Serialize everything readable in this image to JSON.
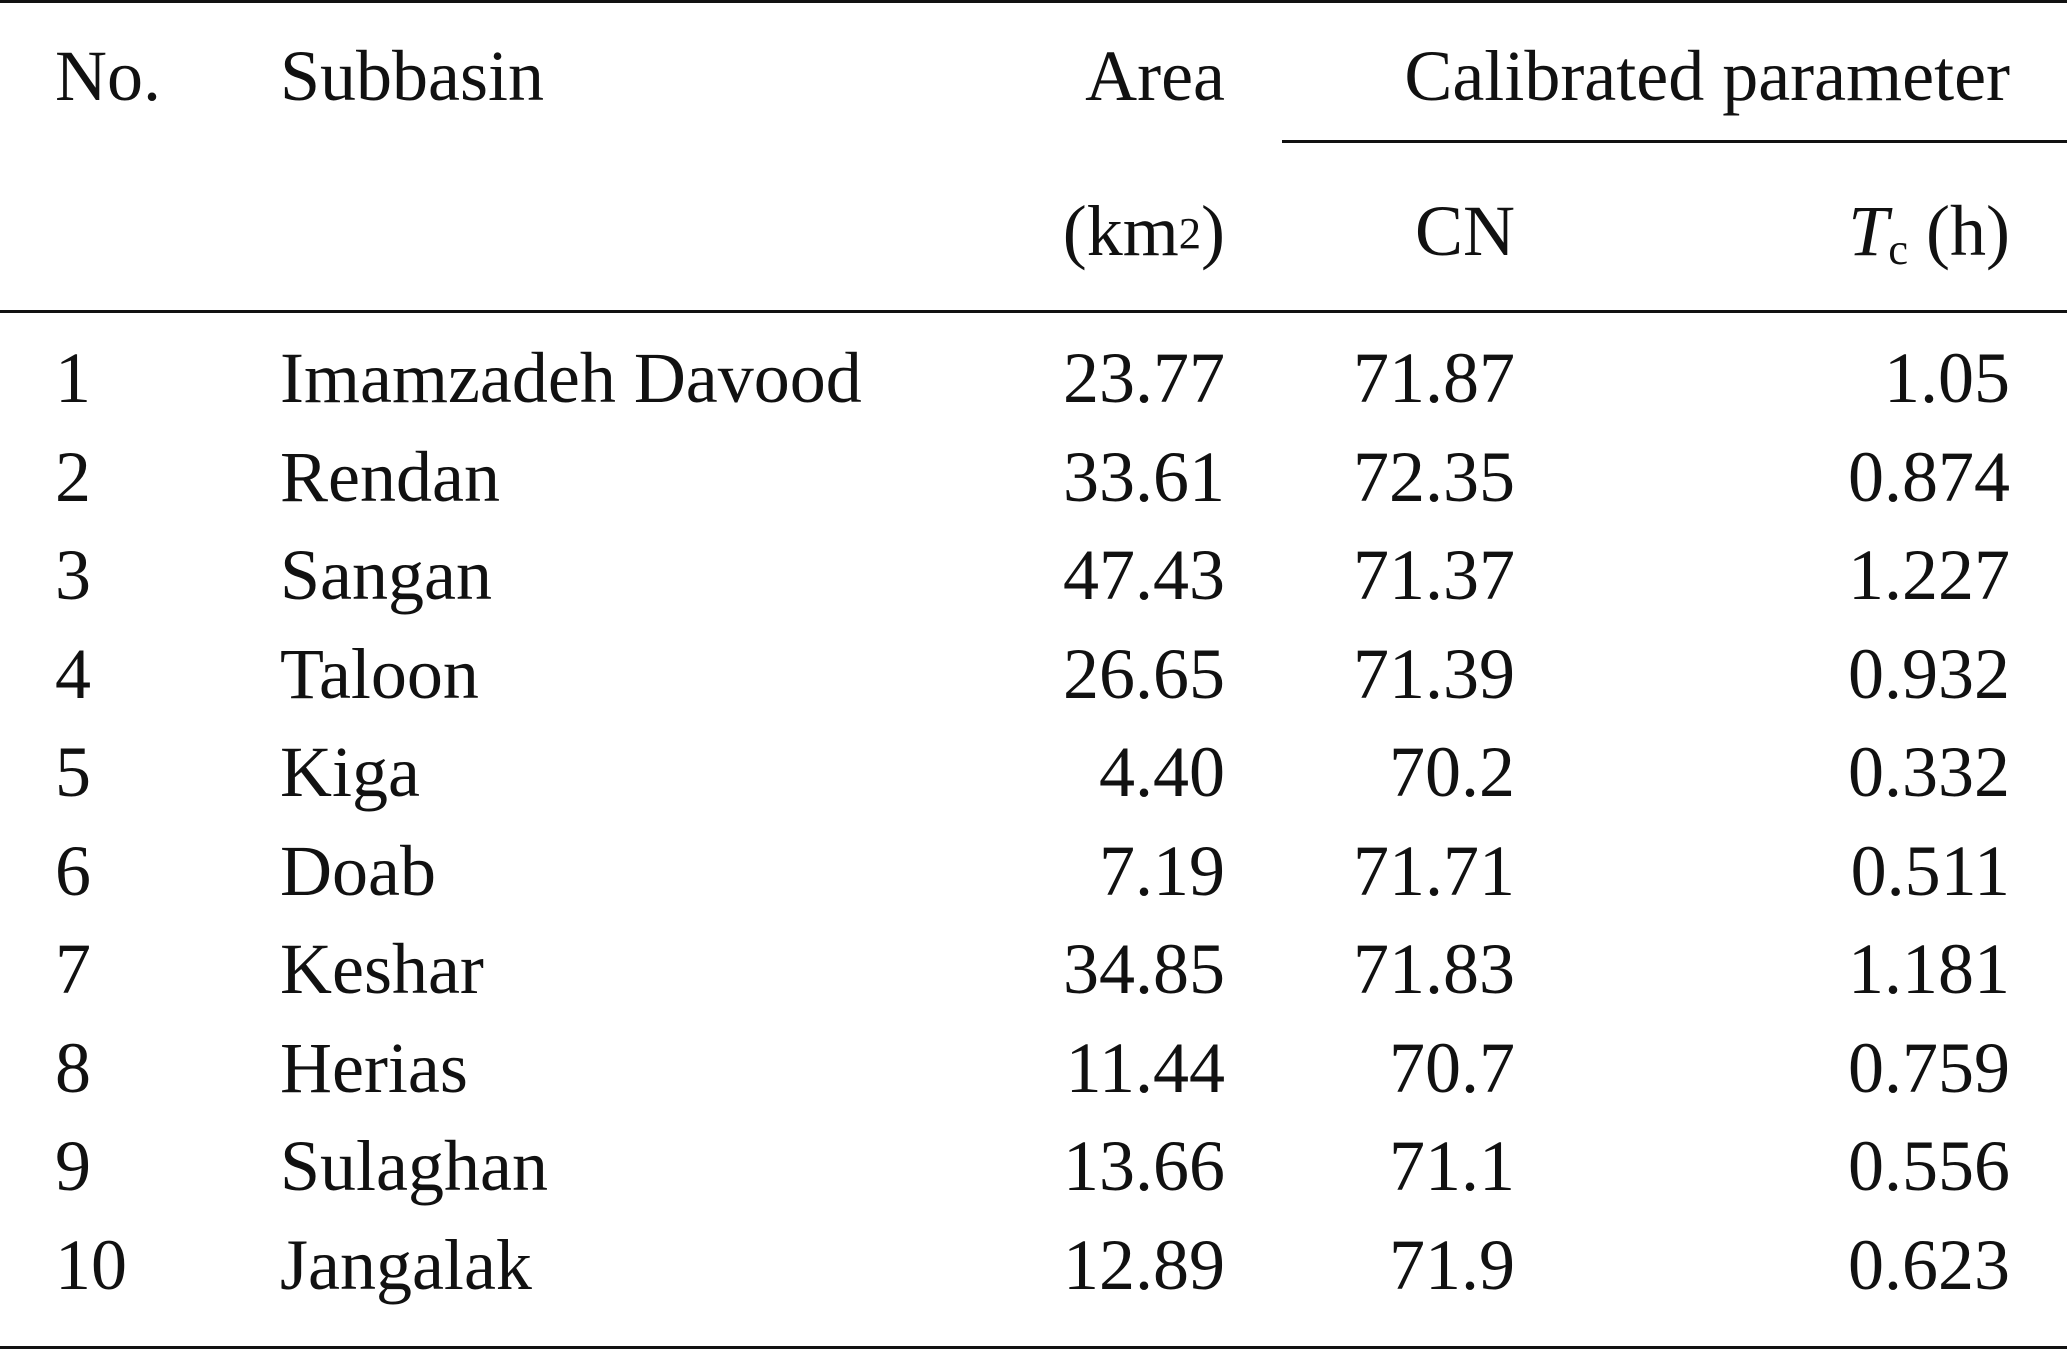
{
  "table": {
    "headers": {
      "no": "No.",
      "subbasin": "Subbasin",
      "area": "Area",
      "area_unit_prefix": "(km",
      "area_unit_sup": "2",
      "area_unit_suffix": ")",
      "calibrated": "Calibrated parameter",
      "cn": "CN",
      "tc_symbol": "T",
      "tc_sub": "c",
      "tc_unit": " (h)"
    },
    "rows": [
      {
        "no": "1",
        "name": "Imamzadeh Davood",
        "area": "23.77",
        "cn": "71.87",
        "tc": "1.05"
      },
      {
        "no": "2",
        "name": "Rendan",
        "area": "33.61",
        "cn": "72.35",
        "tc": "0.874"
      },
      {
        "no": "3",
        "name": "Sangan",
        "area": "47.43",
        "cn": "71.37",
        "tc": "1.227"
      },
      {
        "no": "4",
        "name": "Taloon",
        "area": "26.65",
        "cn": "71.39",
        "tc": "0.932"
      },
      {
        "no": "5",
        "name": "Kiga",
        "area": "4.40",
        "cn": "70.2",
        "tc": "0.332"
      },
      {
        "no": "6",
        "name": "Doab",
        "area": "7.19",
        "cn": "71.71",
        "tc": "0.511"
      },
      {
        "no": "7",
        "name": "Keshar",
        "area": "34.85",
        "cn": "71.83",
        "tc": "1.181"
      },
      {
        "no": "8",
        "name": "Herias",
        "area": "11.44",
        "cn": "70.7",
        "tc": "0.759"
      },
      {
        "no": "9",
        "name": "Sulaghan",
        "area": "13.66",
        "cn": "71.1",
        "tc": "0.556"
      },
      {
        "no": "10",
        "name": "Jangalak",
        "area": "12.89",
        "cn": "71.9",
        "tc": "0.623"
      }
    ]
  }
}
